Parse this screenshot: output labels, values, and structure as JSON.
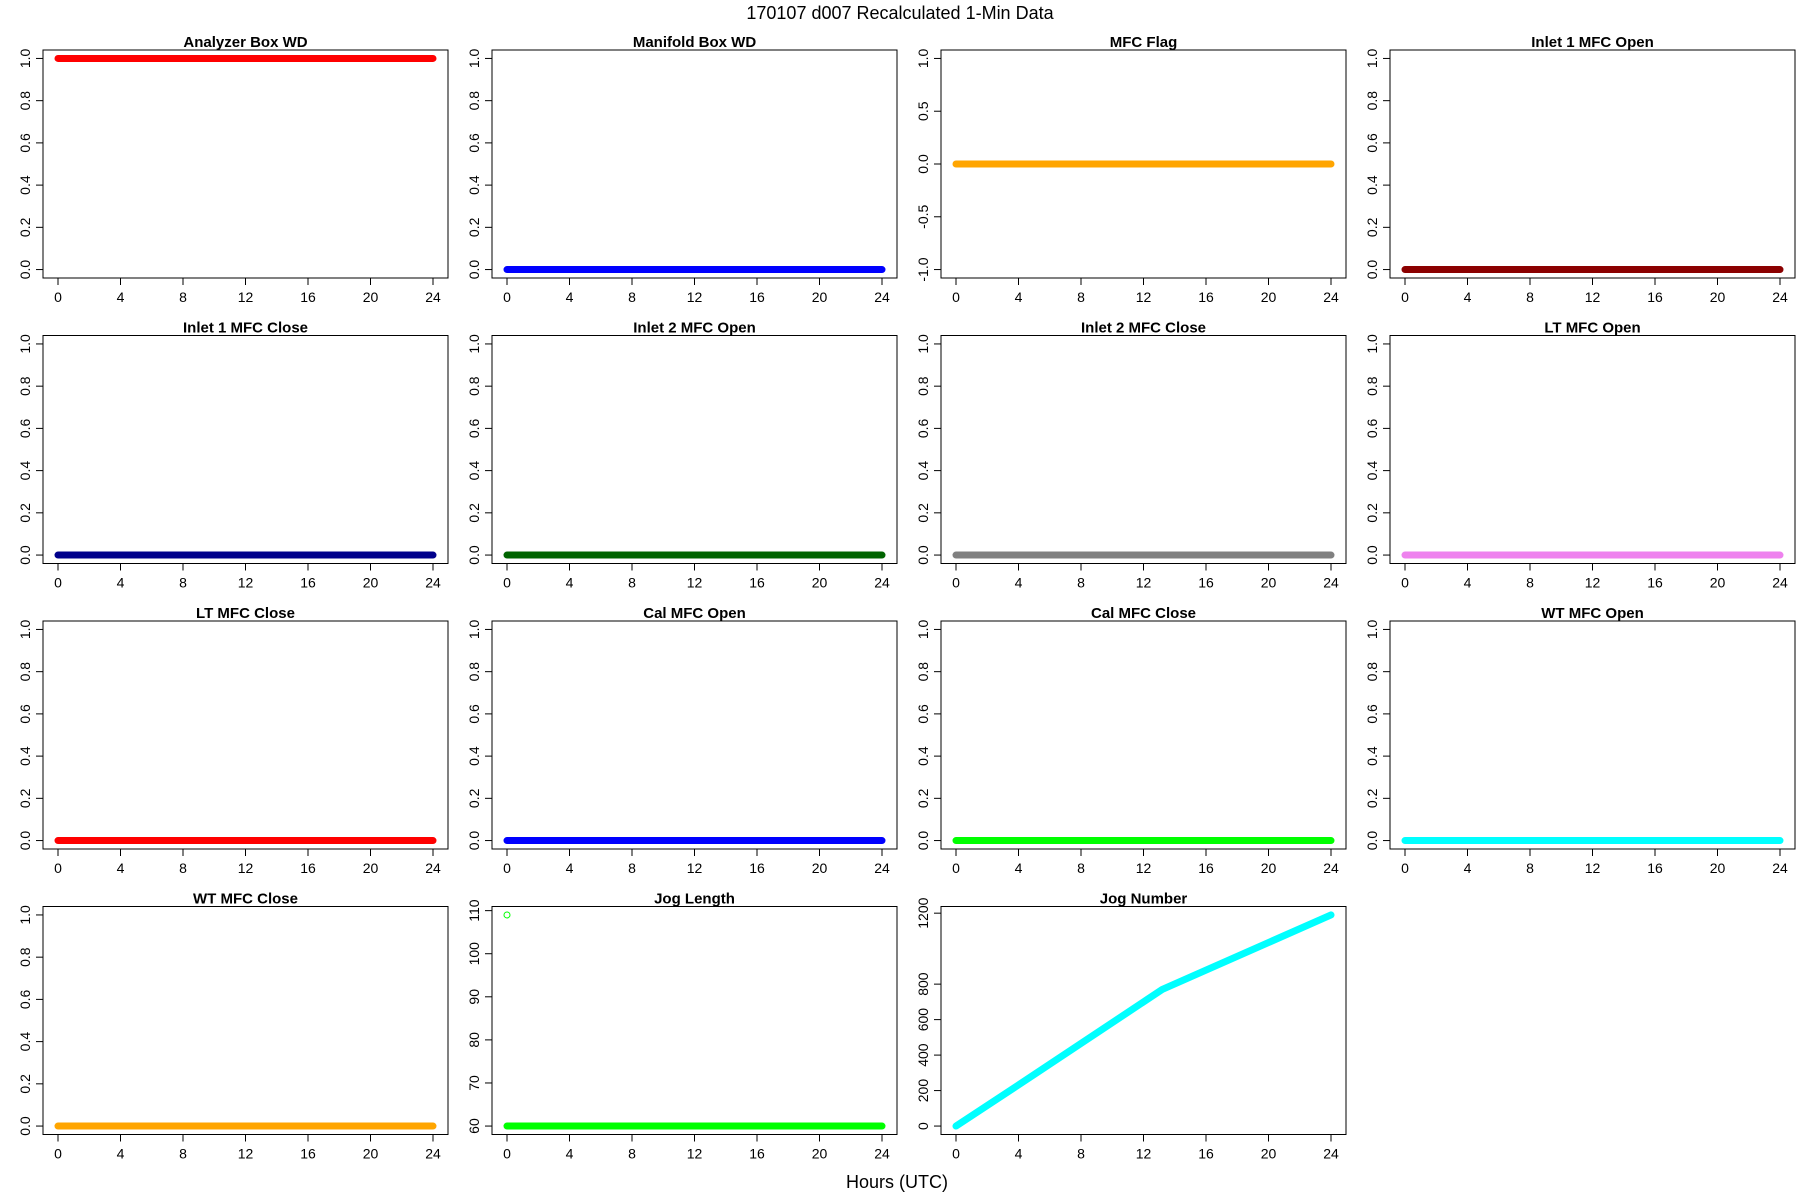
{
  "title": "170107   d007   Recalculated 1-Min Data",
  "xlabel": "Hours (UTC)",
  "chart_data": [
    {
      "type": "line",
      "title": "Analyzer Box WD",
      "color": "#ff0000",
      "x": [
        0,
        24
      ],
      "values": [
        1,
        1
      ],
      "xlim": [
        -0.96,
        24.96
      ],
      "xticks": [
        0,
        4,
        8,
        12,
        16,
        20,
        24
      ],
      "ylim": [
        -0.04,
        1.04
      ],
      "yticks": [
        {
          "value": 0,
          "label": "0.0"
        },
        {
          "value": 0.2,
          "label": "0.2"
        },
        {
          "value": 0.4,
          "label": "0.4"
        },
        {
          "value": 0.6,
          "label": "0.6"
        },
        {
          "value": 0.8,
          "label": "0.8"
        },
        {
          "value": 1,
          "label": "1.0"
        }
      ]
    },
    {
      "type": "line",
      "title": "Manifold Box WD",
      "color": "#0000ff",
      "x": [
        0,
        24
      ],
      "values": [
        0,
        0
      ],
      "xlim": [
        -0.96,
        24.96
      ],
      "xticks": [
        0,
        4,
        8,
        12,
        16,
        20,
        24
      ],
      "ylim": [
        -0.04,
        1.04
      ],
      "yticks": [
        {
          "value": 0,
          "label": "0.0"
        },
        {
          "value": 0.2,
          "label": "0.2"
        },
        {
          "value": 0.4,
          "label": "0.4"
        },
        {
          "value": 0.6,
          "label": "0.6"
        },
        {
          "value": 0.8,
          "label": "0.8"
        },
        {
          "value": 1,
          "label": "1.0"
        }
      ]
    },
    {
      "type": "line",
      "title": "MFC Flag",
      "color": "#ffa500",
      "x": [
        0,
        24
      ],
      "values": [
        0,
        0
      ],
      "xlim": [
        -0.96,
        24.96
      ],
      "xticks": [
        0,
        4,
        8,
        12,
        16,
        20,
        24
      ],
      "ylim": [
        -1.08,
        1.08
      ],
      "yticks": [
        {
          "value": -1,
          "label": "-1.0"
        },
        {
          "value": -0.5,
          "label": "-0.5"
        },
        {
          "value": 0,
          "label": "0.0"
        },
        {
          "value": 0.5,
          "label": "0.5"
        },
        {
          "value": 1,
          "label": "1.0"
        }
      ]
    },
    {
      "type": "line",
      "title": "Inlet 1 MFC Open",
      "color": "#8b0000",
      "x": [
        0,
        24
      ],
      "values": [
        0,
        0
      ],
      "xlim": [
        -0.96,
        24.96
      ],
      "xticks": [
        0,
        4,
        8,
        12,
        16,
        20,
        24
      ],
      "ylim": [
        -0.04,
        1.04
      ],
      "yticks": [
        {
          "value": 0,
          "label": "0.0"
        },
        {
          "value": 0.2,
          "label": "0.2"
        },
        {
          "value": 0.4,
          "label": "0.4"
        },
        {
          "value": 0.6,
          "label": "0.6"
        },
        {
          "value": 0.8,
          "label": "0.8"
        },
        {
          "value": 1,
          "label": "1.0"
        }
      ]
    },
    {
      "type": "line",
      "title": "Inlet 1 MFC Close",
      "color": "#00008b",
      "x": [
        0,
        24
      ],
      "values": [
        0,
        0
      ],
      "xlim": [
        -0.96,
        24.96
      ],
      "xticks": [
        0,
        4,
        8,
        12,
        16,
        20,
        24
      ],
      "ylim": [
        -0.04,
        1.04
      ],
      "yticks": [
        {
          "value": 0,
          "label": "0.0"
        },
        {
          "value": 0.2,
          "label": "0.2"
        },
        {
          "value": 0.4,
          "label": "0.4"
        },
        {
          "value": 0.6,
          "label": "0.6"
        },
        {
          "value": 0.8,
          "label": "0.8"
        },
        {
          "value": 1,
          "label": "1.0"
        }
      ]
    },
    {
      "type": "line",
      "title": "Inlet 2 MFC Open",
      "color": "#006400",
      "x": [
        0,
        24
      ],
      "values": [
        0,
        0
      ],
      "xlim": [
        -0.96,
        24.96
      ],
      "xticks": [
        0,
        4,
        8,
        12,
        16,
        20,
        24
      ],
      "ylim": [
        -0.04,
        1.04
      ],
      "yticks": [
        {
          "value": 0,
          "label": "0.0"
        },
        {
          "value": 0.2,
          "label": "0.2"
        },
        {
          "value": 0.4,
          "label": "0.4"
        },
        {
          "value": 0.6,
          "label": "0.6"
        },
        {
          "value": 0.8,
          "label": "0.8"
        },
        {
          "value": 1,
          "label": "1.0"
        }
      ]
    },
    {
      "type": "line",
      "title": "Inlet 2 MFC Close",
      "color": "#808080",
      "x": [
        0,
        24
      ],
      "values": [
        0,
        0
      ],
      "xlim": [
        -0.96,
        24.96
      ],
      "xticks": [
        0,
        4,
        8,
        12,
        16,
        20,
        24
      ],
      "ylim": [
        -0.04,
        1.04
      ],
      "yticks": [
        {
          "value": 0,
          "label": "0.0"
        },
        {
          "value": 0.2,
          "label": "0.2"
        },
        {
          "value": 0.4,
          "label": "0.4"
        },
        {
          "value": 0.6,
          "label": "0.6"
        },
        {
          "value": 0.8,
          "label": "0.8"
        },
        {
          "value": 1,
          "label": "1.0"
        }
      ]
    },
    {
      "type": "line",
      "title": "LT MFC Open",
      "color": "#ee82ee",
      "x": [
        0,
        24
      ],
      "values": [
        0,
        0
      ],
      "xlim": [
        -0.96,
        24.96
      ],
      "xticks": [
        0,
        4,
        8,
        12,
        16,
        20,
        24
      ],
      "ylim": [
        -0.04,
        1.04
      ],
      "yticks": [
        {
          "value": 0,
          "label": "0.0"
        },
        {
          "value": 0.2,
          "label": "0.2"
        },
        {
          "value": 0.4,
          "label": "0.4"
        },
        {
          "value": 0.6,
          "label": "0.6"
        },
        {
          "value": 0.8,
          "label": "0.8"
        },
        {
          "value": 1,
          "label": "1.0"
        }
      ]
    },
    {
      "type": "line",
      "title": "LT MFC Close",
      "color": "#ff0000",
      "x": [
        0,
        24
      ],
      "values": [
        0,
        0
      ],
      "xlim": [
        -0.96,
        24.96
      ],
      "xticks": [
        0,
        4,
        8,
        12,
        16,
        20,
        24
      ],
      "ylim": [
        -0.04,
        1.04
      ],
      "yticks": [
        {
          "value": 0,
          "label": "0.0"
        },
        {
          "value": 0.2,
          "label": "0.2"
        },
        {
          "value": 0.4,
          "label": "0.4"
        },
        {
          "value": 0.6,
          "label": "0.6"
        },
        {
          "value": 0.8,
          "label": "0.8"
        },
        {
          "value": 1,
          "label": "1.0"
        }
      ]
    },
    {
      "type": "line",
      "title": "Cal MFC Open",
      "color": "#0000ff",
      "x": [
        0,
        24
      ],
      "values": [
        0,
        0
      ],
      "xlim": [
        -0.96,
        24.96
      ],
      "xticks": [
        0,
        4,
        8,
        12,
        16,
        20,
        24
      ],
      "ylim": [
        -0.04,
        1.04
      ],
      "yticks": [
        {
          "value": 0,
          "label": "0.0"
        },
        {
          "value": 0.2,
          "label": "0.2"
        },
        {
          "value": 0.4,
          "label": "0.4"
        },
        {
          "value": 0.6,
          "label": "0.6"
        },
        {
          "value": 0.8,
          "label": "0.8"
        },
        {
          "value": 1,
          "label": "1.0"
        }
      ]
    },
    {
      "type": "line",
      "title": "Cal MFC Close",
      "color": "#00ff00",
      "x": [
        0,
        24
      ],
      "values": [
        0,
        0
      ],
      "xlim": [
        -0.96,
        24.96
      ],
      "xticks": [
        0,
        4,
        8,
        12,
        16,
        20,
        24
      ],
      "ylim": [
        -0.04,
        1.04
      ],
      "yticks": [
        {
          "value": 0,
          "label": "0.0"
        },
        {
          "value": 0.2,
          "label": "0.2"
        },
        {
          "value": 0.4,
          "label": "0.4"
        },
        {
          "value": 0.6,
          "label": "0.6"
        },
        {
          "value": 0.8,
          "label": "0.8"
        },
        {
          "value": 1,
          "label": "1.0"
        }
      ]
    },
    {
      "type": "line",
      "title": "WT MFC Open",
      "color": "#00ffff",
      "x": [
        0,
        24
      ],
      "values": [
        0,
        0
      ],
      "xlim": [
        -0.96,
        24.96
      ],
      "xticks": [
        0,
        4,
        8,
        12,
        16,
        20,
        24
      ],
      "ylim": [
        -0.04,
        1.04
      ],
      "yticks": [
        {
          "value": 0,
          "label": "0.0"
        },
        {
          "value": 0.2,
          "label": "0.2"
        },
        {
          "value": 0.4,
          "label": "0.4"
        },
        {
          "value": 0.6,
          "label": "0.6"
        },
        {
          "value": 0.8,
          "label": "0.8"
        },
        {
          "value": 1,
          "label": "1.0"
        }
      ]
    },
    {
      "type": "line",
      "title": "WT MFC Close",
      "color": "#ffa500",
      "x": [
        0,
        24
      ],
      "values": [
        0,
        0
      ],
      "xlim": [
        -0.96,
        24.96
      ],
      "xticks": [
        0,
        4,
        8,
        12,
        16,
        20,
        24
      ],
      "ylim": [
        -0.04,
        1.04
      ],
      "yticks": [
        {
          "value": 0,
          "label": "0.0"
        },
        {
          "value": 0.2,
          "label": "0.2"
        },
        {
          "value": 0.4,
          "label": "0.4"
        },
        {
          "value": 0.6,
          "label": "0.6"
        },
        {
          "value": 0.8,
          "label": "0.8"
        },
        {
          "value": 1,
          "label": "1.0"
        }
      ]
    },
    {
      "type": "line",
      "title": "Jog Length",
      "color": "#00ff00",
      "x": [
        0,
        24
      ],
      "values": [
        60,
        60
      ],
      "outliers": {
        "x": [
          0
        ],
        "values": [
          109
        ]
      },
      "xlim": [
        -0.96,
        24.96
      ],
      "xticks": [
        0,
        4,
        8,
        12,
        16,
        20,
        24
      ],
      "ylim": [
        58.04,
        110.96
      ],
      "yticks": [
        60,
        70,
        80,
        90,
        100,
        110
      ]
    },
    {
      "type": "line",
      "title": "Jog Number",
      "color": "#00ffff",
      "x": [
        0,
        5,
        13.2,
        24
      ],
      "values": [
        0,
        290,
        770,
        1190
      ],
      "xlim": [
        -0.96,
        24.96
      ],
      "xticks": [
        0,
        4,
        8,
        12,
        16,
        20,
        24
      ],
      "ylim": [
        -47.6,
        1237.6
      ],
      "yticks": [
        0,
        200,
        400,
        600,
        800,
        1200
      ]
    }
  ]
}
